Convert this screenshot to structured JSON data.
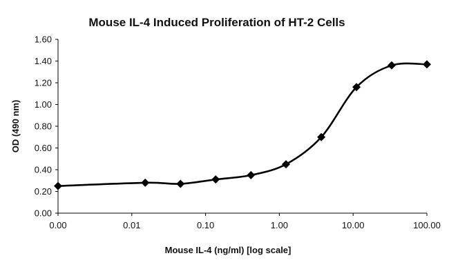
{
  "chart_data": {
    "type": "line",
    "title": "Mouse IL-4 Induced Proliferation of HT-2 Cells",
    "xlabel": "Mouse IL-4 (ng/ml) [log scale]",
    "ylabel": "OD (490 nm)",
    "x_scale": "log",
    "xlim": [
      0.001,
      100
    ],
    "ylim": [
      0,
      1.6
    ],
    "x_ticks": [
      0.001,
      0.01,
      0.1,
      1,
      10,
      100
    ],
    "x_tick_labels": [
      "0.00",
      "0.01",
      "0.10",
      "1.00",
      "10.00",
      "100.00"
    ],
    "y_ticks": [
      0,
      0.2,
      0.4,
      0.6,
      0.8,
      1.0,
      1.2,
      1.4,
      1.6
    ],
    "y_tick_labels": [
      "0.00",
      "0.20",
      "0.40",
      "0.60",
      "0.80",
      "1.00",
      "1.20",
      "1.40",
      "1.60"
    ],
    "grid": false,
    "legend": "none",
    "marker": "diamond",
    "line": "smoothed",
    "color": "#000000",
    "series": [
      {
        "x": [
          0.001,
          0.0152,
          0.0457,
          0.137,
          0.412,
          1.23,
          3.7,
          11.1,
          33.3,
          100
        ],
        "y": [
          0.25,
          0.28,
          0.27,
          0.31,
          0.35,
          0.45,
          0.7,
          1.16,
          1.36,
          1.37
        ]
      }
    ]
  }
}
